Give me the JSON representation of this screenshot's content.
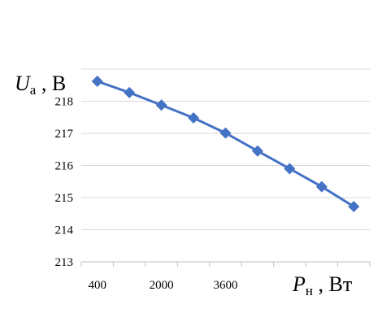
{
  "chart_data": {
    "type": "line",
    "x_tick_labels": [
      "400",
      "2000",
      "3600"
    ],
    "x_tick_values": [
      400,
      2000,
      3600
    ],
    "y_tick_labels": [
      "213",
      "214",
      "215",
      "216",
      "217",
      "218"
    ],
    "y_tick_values": [
      213,
      214,
      215,
      216,
      217,
      218
    ],
    "ylim": [
      213,
      219
    ],
    "series": [
      {
        "x": [
          400,
          1200,
          2000,
          2800,
          3600,
          4400,
          5200,
          6000,
          6800
        ],
        "values": [
          218.62,
          218.27,
          217.88,
          217.48,
          217.01,
          216.45,
          215.9,
          215.34,
          214.72
        ]
      }
    ],
    "ylabel": {
      "main": "U",
      "sub": "a",
      "rest": " , В"
    },
    "xlabel": {
      "main": "P",
      "sub": "н",
      "rest": " , Вт"
    },
    "line_color": "#4472C4",
    "marker": "diamond",
    "grid": true
  }
}
